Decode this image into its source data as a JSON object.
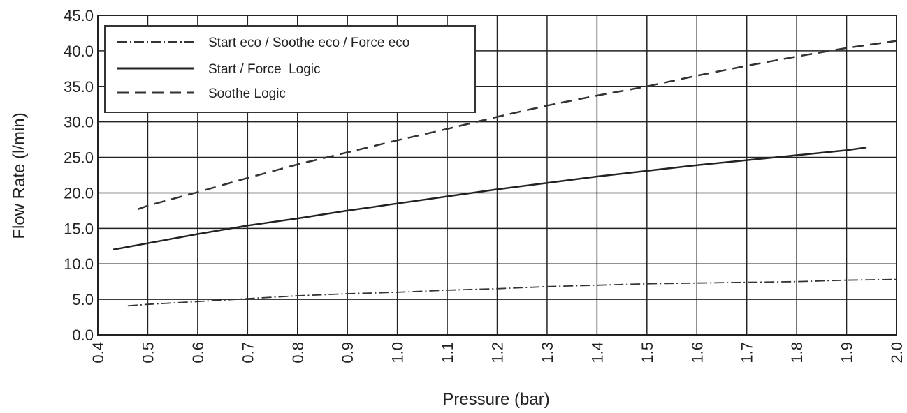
{
  "chart_data": {
    "type": "line",
    "title": "",
    "xlabel": "Pressure (bar)",
    "ylabel": "Flow Rate (l/min)",
    "xlim": [
      0.4,
      2.0
    ],
    "ylim": [
      0.0,
      45.0
    ],
    "x_ticks": [
      "0.4",
      "0.5",
      "0.6",
      "0.7",
      "0.8",
      "0.9",
      "1.0",
      "1.1",
      "1.2",
      "1.3",
      "1.4",
      "1.5",
      "1.6",
      "1.7",
      "1.8",
      "1.9",
      "2.0"
    ],
    "y_ticks": [
      "0.0",
      "5.0",
      "10.0",
      "15.0",
      "20.0",
      "25.0",
      "30.0",
      "35.0",
      "40.0",
      "45.0"
    ],
    "grid": true,
    "legend_position": "top-left",
    "series": [
      {
        "name": "Start eco / Soothe eco / Force eco",
        "line_style": "dash-dot",
        "color": "#333333",
        "x": [
          0.46,
          0.5,
          0.6,
          0.7,
          0.8,
          0.9,
          1.0,
          1.1,
          1.2,
          1.3,
          1.4,
          1.5,
          1.6,
          1.7,
          1.8,
          1.9,
          2.0
        ],
        "y": [
          4.1,
          4.3,
          4.7,
          5.1,
          5.5,
          5.8,
          6.0,
          6.3,
          6.5,
          6.8,
          7.0,
          7.2,
          7.3,
          7.4,
          7.5,
          7.7,
          7.8
        ]
      },
      {
        "name": "Start / Force  Logic",
        "line_style": "solid",
        "color": "#222222",
        "x": [
          0.43,
          0.5,
          0.6,
          0.7,
          0.8,
          0.9,
          1.0,
          1.1,
          1.2,
          1.3,
          1.4,
          1.5,
          1.6,
          1.7,
          1.8,
          1.9,
          1.94
        ],
        "y": [
          12.0,
          12.9,
          14.2,
          15.4,
          16.4,
          17.5,
          18.5,
          19.5,
          20.5,
          21.4,
          22.3,
          23.1,
          23.9,
          24.6,
          25.3,
          26.0,
          26.4
        ]
      },
      {
        "name": "Soothe Logic",
        "line_style": "dashed",
        "color": "#333333",
        "x": [
          0.48,
          0.5,
          0.6,
          0.7,
          0.8,
          0.9,
          1.0,
          1.1,
          1.2,
          1.3,
          1.4,
          1.5,
          1.6,
          1.7,
          1.8,
          1.9,
          2.0
        ],
        "y": [
          17.7,
          18.2,
          20.1,
          22.1,
          24.0,
          25.7,
          27.4,
          29.0,
          30.7,
          32.3,
          33.7,
          35.0,
          36.5,
          37.9,
          39.2,
          40.4,
          41.4
        ]
      }
    ]
  }
}
